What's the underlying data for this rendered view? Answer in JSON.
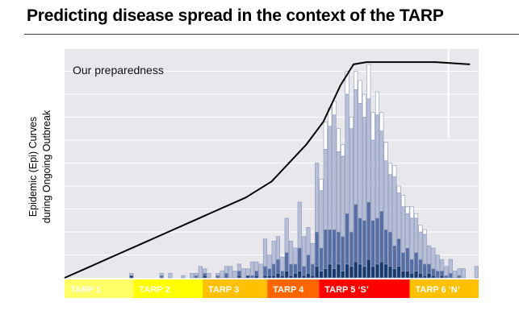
{
  "slide": {
    "title": "Predicting disease spread in the context of the TARP"
  },
  "chart_data": {
    "type": "bar",
    "stacked": true,
    "title": "Predicting disease spread in the context of the TARP",
    "xlabel": "",
    "ylabel_lines": [
      "Epidemic (Epi) Curves",
      "during Ongoing Outbreak"
    ],
    "ylim": [
      0,
      100
    ],
    "grid": "horizontal",
    "bin_count": 96,
    "bars": [
      [
        0,
        0,
        0,
        0
      ],
      [
        0,
        0,
        0,
        0
      ],
      [
        0,
        0,
        0,
        0
      ],
      [
        0,
        0,
        0,
        0
      ],
      [
        0,
        0,
        0,
        0
      ],
      [
        0,
        0,
        0,
        0
      ],
      [
        0,
        0,
        0,
        0
      ],
      [
        0,
        0,
        0,
        0
      ],
      [
        0,
        0,
        0,
        0
      ],
      [
        0,
        0,
        0,
        0
      ],
      [
        0,
        0,
        0,
        0
      ],
      [
        0,
        0,
        0,
        0
      ],
      [
        0,
        0,
        0,
        0
      ],
      [
        0,
        0,
        0,
        0
      ],
      [
        0,
        0,
        0,
        0
      ],
      [
        1,
        0,
        1,
        0
      ],
      [
        0,
        0,
        0,
        0
      ],
      [
        0,
        0,
        0,
        0
      ],
      [
        0,
        0,
        0,
        0
      ],
      [
        0,
        0,
        0,
        0
      ],
      [
        0,
        0,
        0,
        0
      ],
      [
        0,
        0,
        0,
        0
      ],
      [
        0,
        1,
        1,
        0
      ],
      [
        0,
        0,
        0,
        0
      ],
      [
        0,
        0,
        2,
        0
      ],
      [
        0,
        0,
        0,
        0
      ],
      [
        0,
        0,
        0,
        0
      ],
      [
        0,
        0,
        1,
        0
      ],
      [
        0,
        0,
        0,
        0
      ],
      [
        0,
        0,
        2,
        0
      ],
      [
        0,
        1,
        1,
        0
      ],
      [
        0,
        0,
        5,
        0
      ],
      [
        1,
        1,
        2,
        0
      ],
      [
        0,
        0,
        2,
        0
      ],
      [
        0,
        0,
        0,
        0
      ],
      [
        0,
        1,
        1,
        0
      ],
      [
        0,
        0,
        3,
        0
      ],
      [
        0,
        2,
        3,
        0
      ],
      [
        0,
        0,
        5,
        0
      ],
      [
        0,
        0,
        3,
        0
      ],
      [
        1,
        2,
        3,
        0
      ],
      [
        0,
        0,
        4,
        0
      ],
      [
        1,
        0,
        3,
        0
      ],
      [
        0,
        1,
        6,
        0
      ],
      [
        1,
        2,
        4,
        0
      ],
      [
        0,
        0,
        6,
        0
      ],
      [
        1,
        4,
        12,
        0
      ],
      [
        1,
        3,
        6,
        0
      ],
      [
        1,
        5,
        10,
        0
      ],
      [
        2,
        6,
        10,
        0
      ],
      [
        1,
        2,
        6,
        0
      ],
      [
        3,
        8,
        15,
        0
      ],
      [
        1,
        5,
        10,
        0
      ],
      [
        2,
        4,
        7,
        0
      ],
      [
        3,
        10,
        20,
        0
      ],
      [
        1,
        4,
        13,
        0
      ],
      [
        2,
        8,
        12,
        0
      ],
      [
        1,
        5,
        9,
        0
      ],
      [
        5,
        15,
        30,
        0
      ],
      [
        3,
        10,
        25,
        5
      ],
      [
        4,
        17,
        35,
        12
      ],
      [
        6,
        15,
        45,
        8
      ],
      [
        4,
        17,
        50,
        6
      ],
      [
        6,
        14,
        35,
        10
      ],
      [
        3,
        15,
        35,
        5
      ],
      [
        6,
        22,
        52,
        10
      ],
      [
        5,
        15,
        45,
        5
      ],
      [
        7,
        25,
        50,
        8
      ],
      [
        6,
        20,
        50,
        10
      ],
      [
        5,
        20,
        45,
        10
      ],
      [
        8,
        25,
        45,
        15
      ],
      [
        5,
        20,
        35,
        12
      ],
      [
        6,
        20,
        45,
        10
      ],
      [
        7,
        22,
        35,
        8
      ],
      [
        6,
        15,
        30,
        8
      ],
      [
        5,
        15,
        25,
        5
      ],
      [
        4,
        10,
        30,
        5
      ],
      [
        5,
        12,
        20,
        3
      ],
      [
        3,
        8,
        20,
        5
      ],
      [
        3,
        10,
        15,
        3
      ],
      [
        2,
        6,
        18,
        5
      ],
      [
        3,
        8,
        15,
        2
      ],
      [
        2,
        6,
        12,
        3
      ],
      [
        1,
        5,
        13,
        2
      ],
      [
        2,
        4,
        8,
        0
      ],
      [
        1,
        3,
        9,
        0
      ],
      [
        0,
        3,
        7,
        0
      ],
      [
        1,
        2,
        5,
        0
      ],
      [
        0,
        1,
        4,
        0
      ],
      [
        0,
        2,
        6,
        0
      ],
      [
        0,
        0,
        3,
        0
      ],
      [
        0,
        1,
        3,
        0
      ],
      [
        0,
        0,
        4,
        0
      ],
      [
        0,
        0,
        0,
        0
      ],
      [
        0,
        0,
        0,
        0
      ],
      [
        0,
        0,
        5,
        0
      ]
    ],
    "stack_colors": [
      "#173a6e",
      "#556ea3",
      "#b7bfd8",
      "#ffffff"
    ],
    "stack_stroke": "#8c96b8",
    "annotation": {
      "label": "Our preparedness",
      "color": "#000000",
      "points": [
        [
          0,
          0
        ],
        [
          6,
          5
        ],
        [
          12,
          10
        ],
        [
          18,
          15
        ],
        [
          24,
          20
        ],
        [
          30,
          25
        ],
        [
          36,
          30
        ],
        [
          42,
          35
        ],
        [
          48,
          42
        ],
        [
          52,
          50
        ],
        [
          56,
          58
        ],
        [
          60,
          68
        ],
        [
          64,
          84
        ],
        [
          67,
          93
        ],
        [
          70,
          94
        ],
        [
          78,
          94
        ],
        [
          86,
          94
        ],
        [
          94,
          93
        ]
      ]
    },
    "reference_line": {
      "at": 89,
      "from": 61,
      "to": 100,
      "color": "#ffffff"
    },
    "phase_band": {
      "text_color": "#ffffff",
      "phases": [
        {
          "label": "TARP 1",
          "start": 0,
          "end": 16,
          "color": "#ffff66"
        },
        {
          "label": "TARP 2",
          "start": 16,
          "end": 32,
          "color": "#ffff00"
        },
        {
          "label": "TARP 3",
          "start": 32,
          "end": 47,
          "color": "#ffc000"
        },
        {
          "label": "TARP 4",
          "start": 47,
          "end": 59,
          "color": "#ff6600"
        },
        {
          "label": "TARP 5 ‘S’",
          "start": 59,
          "end": 80,
          "color": "#ff0000"
        },
        {
          "label": "TARP 6 ‘N’",
          "start": 80,
          "end": 96,
          "color": "#ffc000"
        }
      ]
    }
  }
}
